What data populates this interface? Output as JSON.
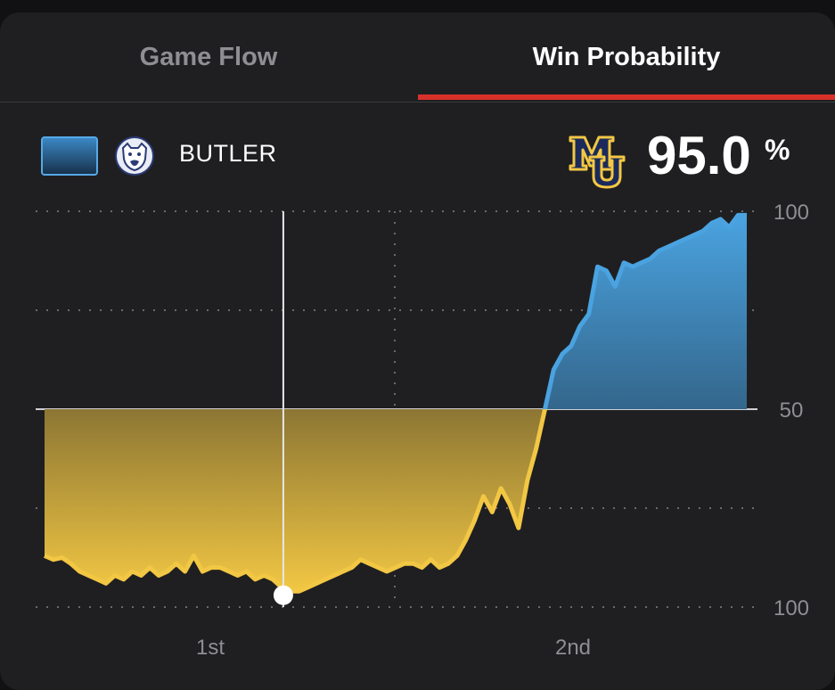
{
  "tabs": [
    {
      "label": "Game Flow",
      "active": false
    },
    {
      "label": "Win Probability",
      "active": true
    }
  ],
  "legend": {
    "team": "BUTLER",
    "team_icon": "bulldog-logo",
    "other_icon": "mu-logo",
    "win_probability": "95.0",
    "percent_sign": "%"
  },
  "colors": {
    "accent": "#d8312a",
    "blue_team": "#4aa3e0",
    "gold_team": "#f2c744",
    "background": "#1f1f21"
  },
  "chart_data": {
    "type": "area",
    "title": "",
    "xlabel": "",
    "ylabel": "",
    "y_tick_labels": [
      "100",
      "50",
      "100"
    ],
    "x_tick_labels": [
      "1st",
      "2nd"
    ],
    "x_range": [
      0,
      40
    ],
    "y_range": [
      -50,
      50
    ],
    "baseline": 0,
    "marker": {
      "x": 13.6,
      "y": -47
    },
    "series": [
      {
        "points": [
          [
            0,
            -37
          ],
          [
            0.5,
            -38
          ],
          [
            1,
            -37.5
          ],
          [
            1.5,
            -39
          ],
          [
            2,
            -41
          ],
          [
            2.5,
            -42
          ],
          [
            3,
            -43
          ],
          [
            3.5,
            -44
          ],
          [
            4,
            -42
          ],
          [
            4.5,
            -43
          ],
          [
            5,
            -41
          ],
          [
            5.5,
            -42
          ],
          [
            6,
            -40
          ],
          [
            6.5,
            -42
          ],
          [
            7,
            -41
          ],
          [
            7.5,
            -39
          ],
          [
            8,
            -41
          ],
          [
            8.5,
            -37
          ],
          [
            9,
            -41
          ],
          [
            9.5,
            -40
          ],
          [
            10,
            -40
          ],
          [
            10.5,
            -41
          ],
          [
            11,
            -42
          ],
          [
            11.5,
            -41
          ],
          [
            12,
            -43
          ],
          [
            12.5,
            -42
          ],
          [
            13,
            -43
          ],
          [
            13.5,
            -45
          ],
          [
            14,
            -46
          ],
          [
            14.5,
            -46
          ],
          [
            15,
            -45
          ],
          [
            15.5,
            -44
          ],
          [
            16,
            -43
          ],
          [
            16.5,
            -42
          ],
          [
            17,
            -41
          ],
          [
            17.5,
            -40
          ],
          [
            18,
            -38
          ],
          [
            18.5,
            -39
          ],
          [
            19,
            -40
          ],
          [
            19.5,
            -41
          ],
          [
            20,
            -40
          ],
          [
            20.5,
            -39
          ],
          [
            21,
            -39
          ],
          [
            21.5,
            -40
          ],
          [
            22,
            -38
          ],
          [
            22.5,
            -40
          ],
          [
            23,
            -39
          ],
          [
            23.5,
            -37
          ],
          [
            24,
            -33
          ],
          [
            24.5,
            -28
          ],
          [
            25,
            -22
          ],
          [
            25.5,
            -26
          ],
          [
            26,
            -20
          ],
          [
            26.5,
            -24
          ],
          [
            27,
            -30
          ],
          [
            27.5,
            -18
          ],
          [
            28,
            -10
          ],
          [
            28.5,
            0
          ],
          [
            29,
            10
          ],
          [
            29.5,
            14
          ],
          [
            30,
            16
          ],
          [
            30.5,
            21
          ],
          [
            31,
            24
          ],
          [
            31.5,
            36
          ],
          [
            32,
            35
          ],
          [
            32.5,
            31
          ],
          [
            33,
            37
          ],
          [
            33.5,
            36
          ],
          [
            34,
            37
          ],
          [
            34.5,
            38
          ],
          [
            35,
            40
          ],
          [
            35.5,
            41
          ],
          [
            36,
            42
          ],
          [
            36.5,
            43
          ],
          [
            37,
            44
          ],
          [
            37.5,
            45
          ],
          [
            38,
            47
          ],
          [
            38.5,
            48
          ],
          [
            39,
            46
          ],
          [
            39.5,
            49
          ],
          [
            40,
            49
          ]
        ]
      }
    ],
    "grid": true,
    "legend_position": "top"
  }
}
